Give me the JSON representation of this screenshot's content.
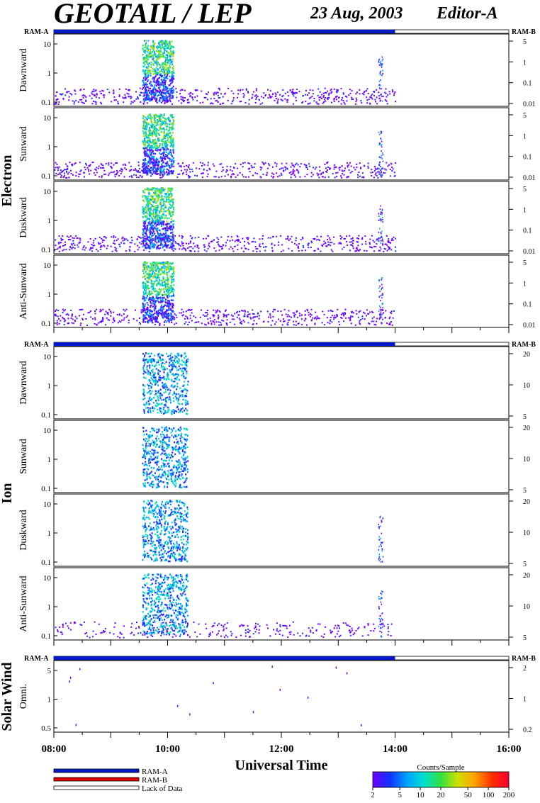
{
  "header": {
    "title": "GEOTAIL / LEP",
    "date": "23 Aug, 2003",
    "editor": "Editor-A"
  },
  "strips": {
    "left": "RAM-A",
    "right": "RAM-B"
  },
  "colors": {
    "ram_a": "#0018c8",
    "ram_b": "#e00000",
    "lack": "#ffffff",
    "frame": "#000000"
  },
  "chart_data": {
    "type": "heatmap",
    "xlabel": "Universal Time",
    "x_ticks": [
      "08:00",
      "10:00",
      "12:00",
      "14:00",
      "16:00"
    ],
    "x_range_hours": [
      8,
      16
    ],
    "ram_a_coverage_hours": [
      8.0,
      14.0
    ],
    "groups": [
      {
        "name": "Electron",
        "left_ticks": [
          "10",
          "1",
          "0.1"
        ],
        "right_ticks": [
          "5",
          "1",
          "0.1",
          "0.01"
        ],
        "panels": [
          {
            "label": "Dawnward"
          },
          {
            "label": "Sunward"
          },
          {
            "label": "Duskward"
          },
          {
            "label": "Anti-Sunward"
          }
        ]
      },
      {
        "name": "Ion",
        "left_ticks": [
          "10",
          "1",
          "0.1"
        ],
        "right_ticks": [
          "20",
          "10",
          "5"
        ],
        "panels": [
          {
            "label": "Dawnward"
          },
          {
            "label": "Sunward"
          },
          {
            "label": "Duskward"
          },
          {
            "label": "Anti-Sunward"
          }
        ]
      },
      {
        "name": "Solar Wind",
        "left_ticks": [
          "5",
          "1",
          "0.5"
        ],
        "right_ticks": [
          "2",
          "1",
          "0.2"
        ],
        "panels": [
          {
            "label": "Omni."
          }
        ]
      }
    ],
    "features": [
      {
        "species": "Electron",
        "hours": [
          9.55,
          10.1
        ],
        "level": "high (20-50 counts/sample)"
      },
      {
        "species": "Electron",
        "hours": [
          10.1,
          14.0
        ],
        "level": "low background (2-5)"
      },
      {
        "species": "Electron",
        "hours": [
          13.7,
          13.8
        ],
        "level": "burst"
      },
      {
        "species": "Ion",
        "hours": [
          9.55,
          10.35
        ],
        "level": "moderate (5-20)"
      },
      {
        "species": "Ion",
        "hours": [
          13.7,
          13.75
        ],
        "level": "burst (Duskward, Anti-Sunward)"
      }
    ]
  },
  "legend": {
    "items": [
      {
        "label": "RAM-A",
        "color": "#0018c8"
      },
      {
        "label": "RAM-B",
        "color": "#e00000"
      },
      {
        "label": "Lack of Data",
        "color": "#ffffff"
      }
    ]
  },
  "colorbar": {
    "title": "Counts/Sample",
    "ticks": [
      "2",
      "5",
      "10",
      "20",
      "50",
      "100",
      "200"
    ]
  }
}
